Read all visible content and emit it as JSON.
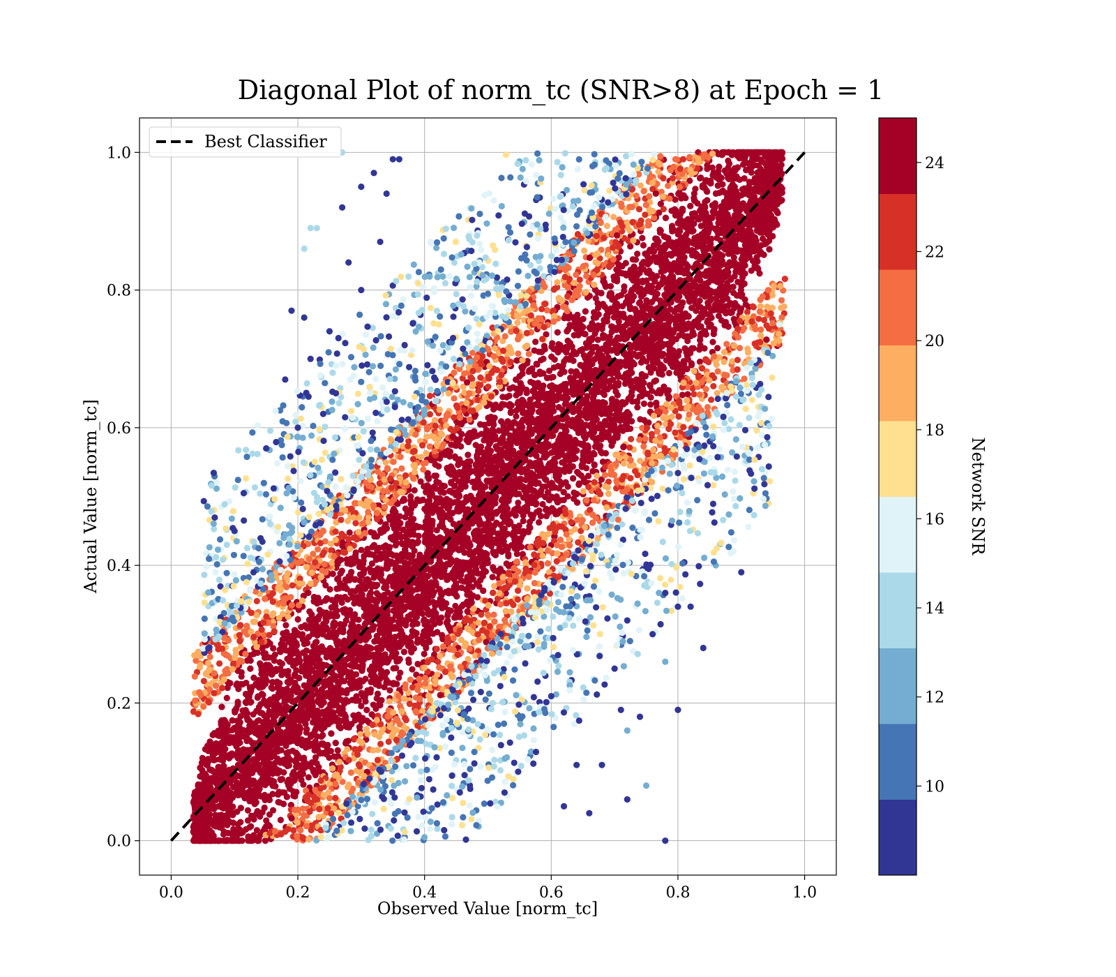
{
  "chart_data": {
    "type": "scatter",
    "title": "Diagonal Plot of norm_tc (SNR>8) at Epoch = 1",
    "xlabel": "Observed Value [norm_tc]",
    "ylabel": "Actual Value [norm_tc]",
    "xlim": [
      -0.05,
      1.05
    ],
    "ylim": [
      -0.05,
      1.05
    ],
    "xticks": [
      "0.0",
      "0.2",
      "0.4",
      "0.6",
      "0.8",
      "1.0"
    ],
    "yticks": [
      "0.0",
      "0.2",
      "0.4",
      "0.6",
      "0.8",
      "1.0"
    ],
    "grid": true,
    "legend": {
      "position": "upper-left",
      "entries": [
        {
          "label": "Best Classifier",
          "style": "black dashed line"
        }
      ]
    },
    "reference_line": {
      "label": "Best Classifier",
      "x": [
        0.0,
        1.0
      ],
      "y": [
        0.0,
        1.0
      ],
      "color": "#000000",
      "dash": "dashed"
    },
    "colorbar": {
      "label": "Network SNR",
      "range": [
        8,
        25
      ],
      "ticks": [
        "10",
        "12",
        "14",
        "16",
        "18",
        "20",
        "22",
        "24"
      ],
      "tick_values": [
        10,
        12,
        14,
        16,
        18,
        20,
        22,
        24
      ],
      "colors": [
        "#313695",
        "#4575b4",
        "#74add1",
        "#abd9e9",
        "#e0f3f8",
        "#fee090",
        "#fdae61",
        "#f46d43",
        "#d73027",
        "#a50026"
      ]
    },
    "series": [
      {
        "points": [
          [
            0.1,
            0.45,
            9
          ],
          [
            0.13,
            0.39,
            9
          ],
          [
            0.15,
            0.57,
            9
          ],
          [
            0.19,
            0.77,
            9
          ],
          [
            0.21,
            0.76,
            9
          ],
          [
            0.18,
            0.67,
            9
          ],
          [
            0.2,
            0.6,
            9
          ],
          [
            0.25,
            0.74,
            9
          ],
          [
            0.27,
            0.92,
            9
          ],
          [
            0.3,
            0.95,
            9
          ],
          [
            0.32,
            0.97,
            9
          ],
          [
            0.35,
            0.99,
            9
          ],
          [
            0.36,
            0.99,
            9
          ],
          [
            0.34,
            0.94,
            9
          ],
          [
            0.3,
            0.8,
            9
          ],
          [
            0.26,
            0.65,
            9
          ],
          [
            0.24,
            0.62,
            9
          ],
          [
            0.22,
            0.7,
            9
          ],
          [
            0.28,
            0.84,
            9
          ],
          [
            0.33,
            0.87,
            9
          ],
          [
            0.9,
            0.39,
            9
          ],
          [
            0.84,
            0.28,
            9
          ],
          [
            0.8,
            0.34,
            9
          ],
          [
            0.82,
            0.34,
            9
          ],
          [
            0.78,
            0.36,
            9
          ],
          [
            0.76,
            0.3,
            9
          ],
          [
            0.72,
            0.32,
            9
          ],
          [
            0.7,
            0.25,
            9
          ],
          [
            0.8,
            0.19,
            9
          ],
          [
            0.74,
            0.18,
            9
          ],
          [
            0.71,
            0.19,
            9
          ],
          [
            0.68,
            0.11,
            9
          ],
          [
            0.72,
            0.06,
            9
          ],
          [
            0.78,
            0.0,
            9
          ],
          [
            0.66,
            0.04,
            9
          ],
          [
            0.62,
            0.05,
            9
          ],
          [
            0.64,
            0.11,
            9
          ],
          [
            0.6,
            0.21,
            9
          ],
          [
            0.75,
            0.08,
            12
          ],
          [
            0.72,
            0.16,
            12
          ],
          [
            0.21,
            0.86,
            14
          ],
          [
            0.23,
            0.89,
            14
          ],
          [
            0.22,
            0.89,
            14
          ],
          [
            0.78,
            0.26,
            13
          ],
          [
            0.77,
            0.36,
            13
          ],
          [
            0.26,
            0.69,
            15
          ],
          [
            0.07,
            0.39,
            15
          ],
          [
            0.96,
            0.75,
            15
          ],
          [
            0.27,
            1.0,
            14
          ],
          [
            0.69,
            0.4,
            12
          ]
        ]
      }
    ]
  }
}
